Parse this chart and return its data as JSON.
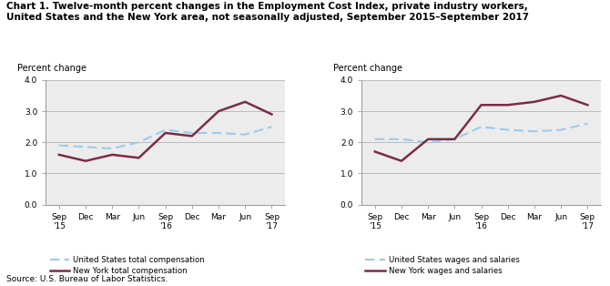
{
  "title_line1": "Chart 1. Twelve-month percent changes in the Employment Cost Index, private industry workers,",
  "title_line2": "United States and the New York area, not seasonally adjusted, September 2015–September 2017",
  "source": "Source: U.S. Bureau of Labor Statistics.",
  "ylabel": "Percent change",
  "ylim": [
    0.0,
    4.0
  ],
  "yticks": [
    0.0,
    1.0,
    2.0,
    3.0,
    4.0
  ],
  "ytick_labels": [
    "0.0",
    "1.0",
    "2.0",
    "3.0",
    "4.0"
  ],
  "xtick_labels": [
    "Sep\n'15",
    "Dec",
    "Mar",
    "Jun",
    "Sep\n'16",
    "Dec",
    "Mar",
    "Jun",
    "Sep\n'17"
  ],
  "chart1_us": [
    1.9,
    1.85,
    1.8,
    2.0,
    2.4,
    2.3,
    2.3,
    2.25,
    2.5
  ],
  "chart1_ny": [
    1.6,
    1.4,
    1.6,
    1.5,
    2.3,
    2.2,
    3.0,
    3.3,
    2.9
  ],
  "chart1_legend_us": "United States total compensation",
  "chart1_legend_ny": "New York total compensation",
  "chart2_us": [
    2.1,
    2.1,
    2.0,
    2.1,
    2.5,
    2.4,
    2.35,
    2.4,
    2.6
  ],
  "chart2_ny": [
    1.7,
    1.4,
    2.1,
    2.1,
    3.2,
    3.2,
    3.3,
    3.5,
    3.2
  ],
  "chart2_legend_us": "United States wages and salaries",
  "chart2_legend_ny": "New York wages and salaries",
  "us_color": "#99ccee",
  "ny_color": "#7B2D42",
  "grid_color": "#bbbbbb",
  "bg_color": "#ececec",
  "spine_color": "#999999",
  "title_fontsize": 7.5,
  "label_fontsize": 7.0,
  "tick_fontsize": 6.5,
  "legend_fontsize": 6.2,
  "source_fontsize": 6.5
}
